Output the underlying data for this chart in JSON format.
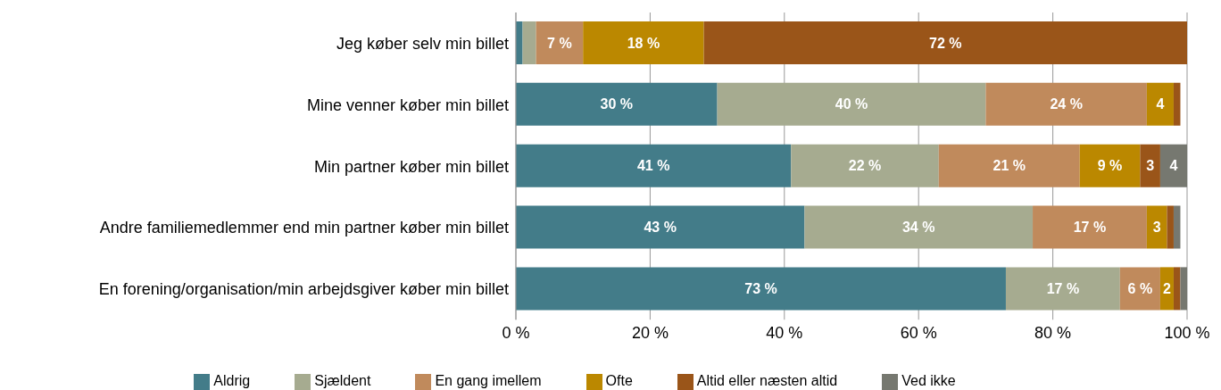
{
  "chart_data": {
    "type": "bar",
    "orientation": "horizontal",
    "stacked": true,
    "categories": [
      "Jeg køber selv min billet",
      "Mine venner køber min billet",
      "Min partner køber min billet",
      "Andre familiemedlemmer end min partner køber min billet",
      "En forening/organisation/min arbejdsgiver køber min billet"
    ],
    "series": [
      {
        "name": "Aldrig",
        "color": "#437c89",
        "values": [
          1,
          30,
          41,
          43,
          73
        ],
        "value_labels": [
          null,
          "30 %",
          "41 %",
          "43 %",
          "73 %"
        ]
      },
      {
        "name": "Sjældent",
        "color": "#a6ab90",
        "values": [
          2,
          40,
          22,
          34,
          17
        ],
        "value_labels": [
          null,
          "40 %",
          "22 %",
          "34 %",
          "17 %"
        ]
      },
      {
        "name": "En gang imellem",
        "color": "#c08a5c",
        "values": [
          7,
          24,
          21,
          17,
          6
        ],
        "value_labels": [
          "7 %",
          "24 %",
          "21 %",
          "17 %",
          "6 %"
        ]
      },
      {
        "name": "Ofte",
        "color": "#bb8800",
        "values": [
          18,
          4,
          9,
          3,
          2
        ],
        "value_labels": [
          "18 %",
          "4",
          "9 %",
          "3",
          "2"
        ]
      },
      {
        "name": "Altid eller næsten altid",
        "color": "#9a5519",
        "values": [
          72,
          1,
          3,
          1,
          1
        ],
        "value_labels": [
          "72 %",
          null,
          "3",
          null,
          null
        ]
      },
      {
        "name": "Ved ikke",
        "color": "#767870",
        "values": [
          0,
          0,
          4,
          1,
          1
        ],
        "value_labels": [
          null,
          null,
          "4",
          null,
          null
        ]
      }
    ],
    "xlim": [
      0,
      100
    ],
    "xticks": [
      {
        "value": 0,
        "label": "0 %"
      },
      {
        "value": 20,
        "label": "20 %"
      },
      {
        "value": 40,
        "label": "40 %"
      },
      {
        "value": 60,
        "label": "60 %"
      },
      {
        "value": 80,
        "label": "80 %"
      },
      {
        "value": 100,
        "label": "100 %"
      }
    ],
    "grid": "x",
    "legend": "bottom"
  }
}
